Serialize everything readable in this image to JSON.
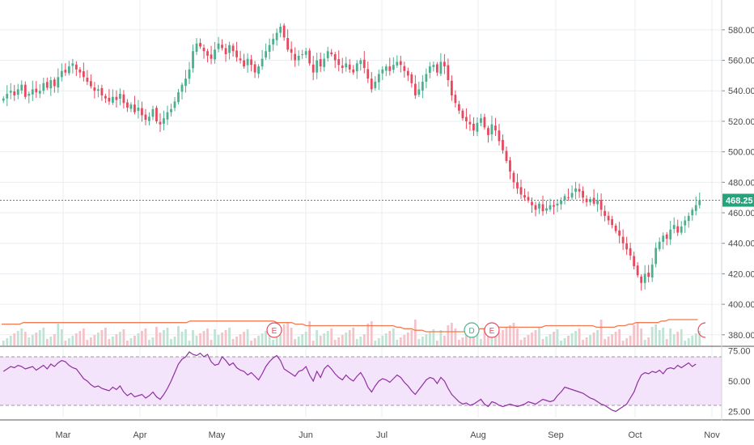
{
  "colors": {
    "up": "#4caf8f",
    "down": "#e8485e",
    "grid": "#e9eef2",
    "axis": "#d0d4d8",
    "vol_up": "#bfe3d4",
    "vol_down": "#f5c2c9",
    "vol_ma": "#f27a52",
    "rsi_line": "#8e2fa1",
    "rsi_bg": "#f4e4fb",
    "rsi_band": "#9a9a9a",
    "last_price": "#26a37a"
  },
  "chart_data": {
    "type": "candlestick",
    "price_axis": {
      "ylim": [
        373,
        590
      ],
      "ticks": [
        "580.00",
        "560.00",
        "540.00",
        "520.00",
        "500.00",
        "480.00",
        "460.00",
        "440.00",
        "420.00",
        "400.00",
        "380.00"
      ]
    },
    "x_labels": [
      "Mar",
      "Apr",
      "May",
      "Jun",
      "Jul",
      "Aug",
      "Sep",
      "Oct",
      "Nov"
    ],
    "last_price": "468.25",
    "closes": [
      535,
      538,
      540,
      537,
      541,
      544,
      536,
      538,
      541,
      539,
      540,
      545,
      542,
      547,
      543,
      549,
      553,
      552,
      556,
      558,
      554,
      552,
      549,
      546,
      543,
      540,
      541,
      537,
      535,
      533,
      536,
      534,
      538,
      532,
      529,
      531,
      526,
      529,
      524,
      521,
      523,
      528,
      520,
      518,
      522,
      526,
      528,
      533,
      539,
      544,
      548,
      554,
      566,
      571,
      569,
      566,
      563,
      561,
      567,
      571,
      568,
      564,
      570,
      566,
      562,
      560,
      556,
      561,
      557,
      552,
      556,
      561,
      566,
      570,
      574,
      578,
      582,
      575,
      567,
      565,
      560,
      563,
      564,
      566,
      558,
      552,
      560,
      556,
      561,
      566,
      564,
      560,
      557,
      555,
      558,
      554,
      552,
      558,
      560,
      555,
      548,
      541,
      546,
      551,
      554,
      556,
      553,
      557,
      559,
      557,
      553,
      550,
      545,
      537,
      541,
      546,
      551,
      556,
      557,
      552,
      559,
      556,
      547,
      537,
      532,
      527,
      522,
      520,
      518,
      514,
      519,
      522,
      516,
      511,
      518,
      514,
      507,
      501,
      494,
      487,
      480,
      476,
      472,
      470,
      468,
      465,
      462,
      466,
      461,
      463,
      465,
      464,
      466,
      468,
      471,
      470,
      473,
      476,
      474,
      470,
      467,
      469,
      466,
      468,
      462,
      458,
      455,
      452,
      448,
      445,
      440,
      436,
      432,
      425,
      419,
      414,
      420,
      418,
      426,
      437,
      441,
      445,
      443,
      449,
      452,
      447,
      451,
      455,
      458,
      462,
      465,
      468.25
    ],
    "volume_ma": [
      387,
      387,
      387,
      387,
      387,
      387,
      388,
      388,
      388,
      388,
      388,
      388,
      388,
      388,
      388,
      388,
      388,
      388,
      388,
      388,
      388,
      388,
      388,
      388,
      388,
      388,
      388,
      388,
      388,
      388,
      388,
      388,
      388,
      388,
      388,
      388,
      388,
      388,
      388,
      388,
      388,
      388,
      388,
      388,
      388,
      388,
      388,
      388,
      388,
      388,
      388,
      388,
      389,
      389,
      389,
      389,
      389,
      389,
      389,
      389,
      389,
      389,
      389,
      389,
      389,
      389,
      389,
      389,
      389,
      389,
      389,
      389,
      389,
      389,
      389,
      389,
      388,
      388,
      388,
      388,
      388,
      387,
      387,
      387,
      386,
      386,
      386,
      386,
      386,
      386,
      386,
      386,
      386,
      386,
      386,
      386,
      386,
      386,
      386,
      386,
      386,
      386,
      386,
      386,
      386,
      386,
      386,
      386,
      386,
      385,
      385,
      384,
      384,
      384,
      383,
      383,
      383,
      382,
      382,
      382,
      382,
      382,
      382,
      382,
      382,
      382,
      382,
      382,
      382,
      382,
      383,
      383,
      384,
      384,
      384,
      384,
      385,
      385,
      385,
      385,
      385,
      385,
      385,
      385,
      385,
      385,
      385,
      385,
      385,
      385,
      386,
      386,
      386,
      386,
      386,
      386,
      386,
      386,
      386,
      386,
      386,
      386,
      386,
      386,
      385,
      385,
      385,
      385,
      385,
      385,
      386,
      386,
      386,
      387,
      387,
      388,
      388,
      388,
      388,
      388,
      388,
      388,
      389,
      389,
      390,
      390,
      390,
      390,
      390,
      390,
      390,
      390,
      390
    ],
    "event_markers": [
      "E",
      "D",
      "E"
    ],
    "rsi": {
      "ticks": [
        "75.00",
        "50.00",
        "25.00"
      ],
      "ylim": [
        20,
        78
      ],
      "upper": 70,
      "lower": 30,
      "values": [
        58,
        60,
        62,
        61,
        63,
        62,
        60,
        61,
        62,
        59,
        61,
        63,
        60,
        64,
        62,
        65,
        67,
        66,
        63,
        61,
        60,
        56,
        52,
        50,
        47,
        45,
        46,
        44,
        43,
        42,
        45,
        43,
        46,
        41,
        38,
        40,
        37,
        38,
        39,
        36,
        38,
        41,
        37,
        35,
        39,
        44,
        50,
        57,
        64,
        68,
        70,
        74,
        72,
        71,
        73,
        70,
        72,
        66,
        63,
        64,
        70,
        67,
        63,
        65,
        61,
        59,
        58,
        55,
        57,
        54,
        51,
        56,
        62,
        66,
        69,
        71,
        67,
        60,
        58,
        56,
        54,
        58,
        59,
        62,
        55,
        50,
        58,
        53,
        60,
        63,
        60,
        56,
        53,
        51,
        55,
        52,
        50,
        54,
        57,
        52,
        45,
        41,
        46,
        50,
        52,
        51,
        49,
        52,
        55,
        53,
        49,
        46,
        42,
        39,
        43,
        47,
        51,
        53,
        52,
        48,
        53,
        50,
        44,
        39,
        36,
        33,
        31,
        32,
        30,
        31,
        33,
        35,
        31,
        29,
        33,
        32,
        30,
        29,
        30,
        31,
        30,
        29,
        30,
        31,
        33,
        32,
        31,
        33,
        35,
        34,
        33,
        34,
        38,
        41,
        45,
        44,
        43,
        42,
        41,
        40,
        38,
        36,
        35,
        33,
        31,
        30,
        28,
        26,
        25,
        27,
        29,
        31,
        36,
        41,
        49,
        55,
        57,
        56,
        58,
        57,
        59,
        56,
        60,
        61,
        60,
        63,
        61,
        63,
        65,
        62,
        64
      ]
    }
  }
}
